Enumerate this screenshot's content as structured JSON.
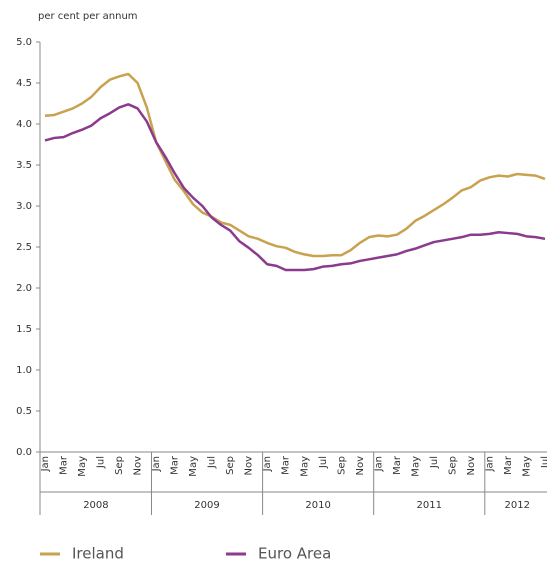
{
  "chart_data": {
    "type": "line",
    "y_label": "per cent per annum",
    "categories": [
      "Jan",
      null,
      "Mar",
      null,
      "May",
      null,
      "Jul",
      null,
      "Sep",
      null,
      "Nov",
      null,
      "Jan",
      null,
      "Mar",
      null,
      "May",
      null,
      "Jul",
      null,
      "Sep",
      null,
      "Nov",
      null,
      "Jan",
      null,
      "Mar",
      null,
      "May",
      null,
      "Jul",
      null,
      "Sep",
      null,
      "Nov",
      null,
      "Jan",
      null,
      "Mar",
      null,
      "May",
      null,
      "Jul",
      null,
      "Sep",
      null,
      "Nov",
      null,
      "Jan",
      null,
      "Mar",
      null,
      "May",
      null,
      "Jul"
    ],
    "years": [
      "2008",
      "2009",
      "2010",
      "2011",
      "2012"
    ],
    "series": [
      {
        "name": "Ireland",
        "color": "#c9a250",
        "values": [
          4.1,
          4.11,
          4.15,
          4.19,
          4.25,
          4.33,
          4.45,
          4.54,
          4.58,
          4.61,
          4.5,
          4.2,
          3.78,
          3.55,
          3.32,
          3.18,
          3.02,
          2.92,
          2.87,
          2.8,
          2.77,
          2.7,
          2.63,
          2.6,
          2.55,
          2.51,
          2.49,
          2.44,
          2.41,
          2.39,
          2.39,
          2.4,
          2.4,
          2.46,
          2.55,
          2.62,
          2.64,
          2.63,
          2.65,
          2.72,
          2.82,
          2.88,
          2.95,
          3.02,
          3.1,
          3.19,
          3.23,
          3.31,
          3.35,
          3.37,
          3.36,
          3.39,
          3.38,
          3.37,
          3.33
        ]
      },
      {
        "name": "Euro Area",
        "color": "#8c3a8e",
        "values": [
          3.8,
          3.83,
          3.84,
          3.89,
          3.93,
          3.98,
          4.07,
          4.13,
          4.2,
          4.24,
          4.19,
          4.03,
          3.78,
          3.6,
          3.4,
          3.22,
          3.1,
          3.0,
          2.86,
          2.77,
          2.7,
          2.57,
          2.49,
          2.4,
          2.29,
          2.27,
          2.22,
          2.22,
          2.22,
          2.23,
          2.26,
          2.27,
          2.29,
          2.3,
          2.33,
          2.35,
          2.37,
          2.39,
          2.41,
          2.45,
          2.48,
          2.52,
          2.56,
          2.58,
          2.6,
          2.62,
          2.65,
          2.65,
          2.66,
          2.68,
          2.67,
          2.66,
          2.63,
          2.62,
          2.6
        ]
      }
    ],
    "ylim": [
      0,
      5
    ],
    "yticks": [
      {
        "value": 0,
        "label": "0.0"
      },
      {
        "value": 0.5,
        "label": "0.5"
      },
      {
        "value": 1,
        "label": "1.0"
      },
      {
        "value": 1.5,
        "label": "1.5"
      },
      {
        "value": 2,
        "label": "2.0"
      },
      {
        "value": 2.5,
        "label": "2.5"
      },
      {
        "value": 3,
        "label": "3.0"
      },
      {
        "value": 3.5,
        "label": "3.5"
      },
      {
        "value": 4,
        "label": "4.0"
      },
      {
        "value": 4.5,
        "label": "4.5"
      },
      {
        "value": 5,
        "label": "5.0"
      }
    ],
    "grid": false,
    "legend": "bottom"
  }
}
